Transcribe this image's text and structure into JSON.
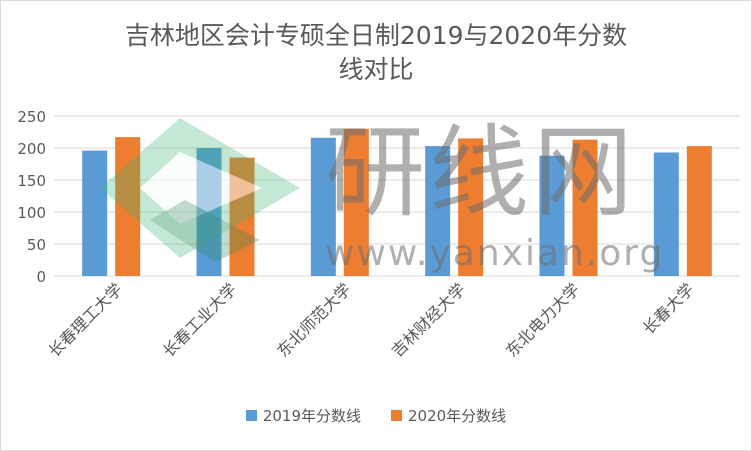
{
  "chart_data": {
    "type": "bar",
    "title_line1": "吉林地区会计专硕全日制2019与2020年分数",
    "title_line2": "线对比",
    "categories": [
      "长春理工大学",
      "长春工业大学",
      "东北师范大学",
      "吉林财经大学",
      "东北电力大学",
      "长春大学"
    ],
    "series": [
      {
        "name": "2019年分数线",
        "values": [
          196,
          200,
          216,
          203,
          188,
          193
        ],
        "color": "#5b9bd5"
      },
      {
        "name": "2020年分数线",
        "values": [
          217,
          185,
          230,
          215,
          213,
          203
        ],
        "color": "#ed7d31"
      }
    ],
    "y_ticks": [
      "0",
      "50",
      "100",
      "150",
      "200",
      "250"
    ],
    "ylim": [
      0,
      250
    ],
    "grid": true,
    "legend_position": "bottom"
  },
  "watermark": {
    "main_text": "研线网",
    "url_text": "www.yanxian.org"
  }
}
